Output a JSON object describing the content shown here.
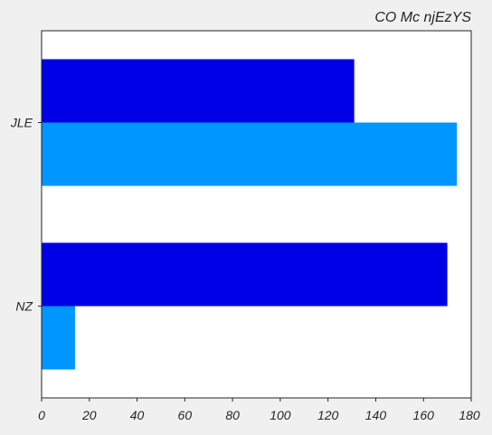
{
  "chart_data": {
    "type": "bar",
    "orientation": "horizontal",
    "title": "CO Mc njEzYS",
    "xlabel": "",
    "ylabel": "",
    "categories": [
      "JLE",
      "NZ"
    ],
    "series": [
      {
        "values": [
          131,
          170
        ],
        "color": "#0000e6"
      },
      {
        "values": [
          174,
          14
        ],
        "color": "#0096ff"
      }
    ],
    "xlim": [
      0,
      180
    ],
    "xticks": [
      "0",
      "20",
      "40",
      "60",
      "80",
      "100",
      "120",
      "140",
      "160",
      "180"
    ],
    "grid": false,
    "legend": "none"
  }
}
